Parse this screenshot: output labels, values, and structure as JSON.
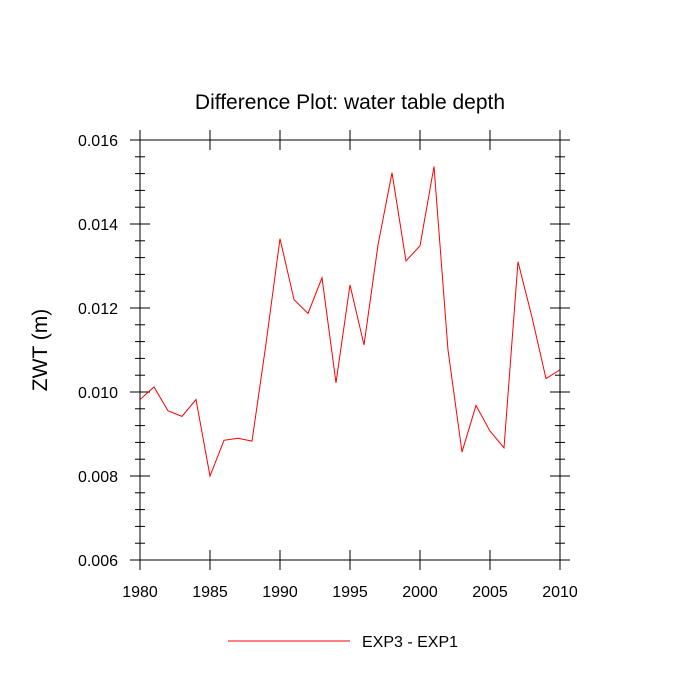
{
  "chart_data": {
    "type": "line",
    "title": "Difference Plot: water table depth",
    "xlabel": "",
    "ylabel": "ZWT  (m)",
    "xlim": [
      1980,
      2010
    ],
    "ylim": [
      0.006,
      0.016
    ],
    "x_ticks": [
      1980,
      1985,
      1990,
      1995,
      2000,
      2005,
      2010
    ],
    "x_tick_labels": [
      "1980",
      "1985",
      "1990",
      "1995",
      "2000",
      "2005",
      "2010"
    ],
    "y_ticks": [
      0.006,
      0.008,
      0.01,
      0.012,
      0.014,
      0.016
    ],
    "y_tick_labels": [
      "0.006",
      "0.008",
      "0.010",
      "0.012",
      "0.014",
      "0.016"
    ],
    "grid": false,
    "legend_position": "bottom-center",
    "series": [
      {
        "name": "EXP3 - EXP1",
        "color": "#ff0000",
        "x": [
          1980,
          1981,
          1982,
          1983,
          1984,
          1985,
          1986,
          1987,
          1988,
          1989,
          1990,
          1991,
          1992,
          1993,
          1994,
          1995,
          1996,
          1997,
          1998,
          1999,
          2000,
          2001,
          2002,
          2003,
          2004,
          2005,
          2006,
          2007,
          2008,
          2009,
          2010
        ],
        "values": [
          0.00982,
          0.01012,
          0.00955,
          0.00942,
          0.00982,
          0.008,
          0.00885,
          0.0089,
          0.00883,
          0.01115,
          0.01365,
          0.0122,
          0.01187,
          0.01272,
          0.01022,
          0.01255,
          0.01112,
          0.0135,
          0.01522,
          0.01312,
          0.01348,
          0.01537,
          0.011,
          0.00857,
          0.00968,
          0.00907,
          0.00867,
          0.0131,
          0.01178,
          0.01032,
          0.01053
        ]
      }
    ]
  }
}
